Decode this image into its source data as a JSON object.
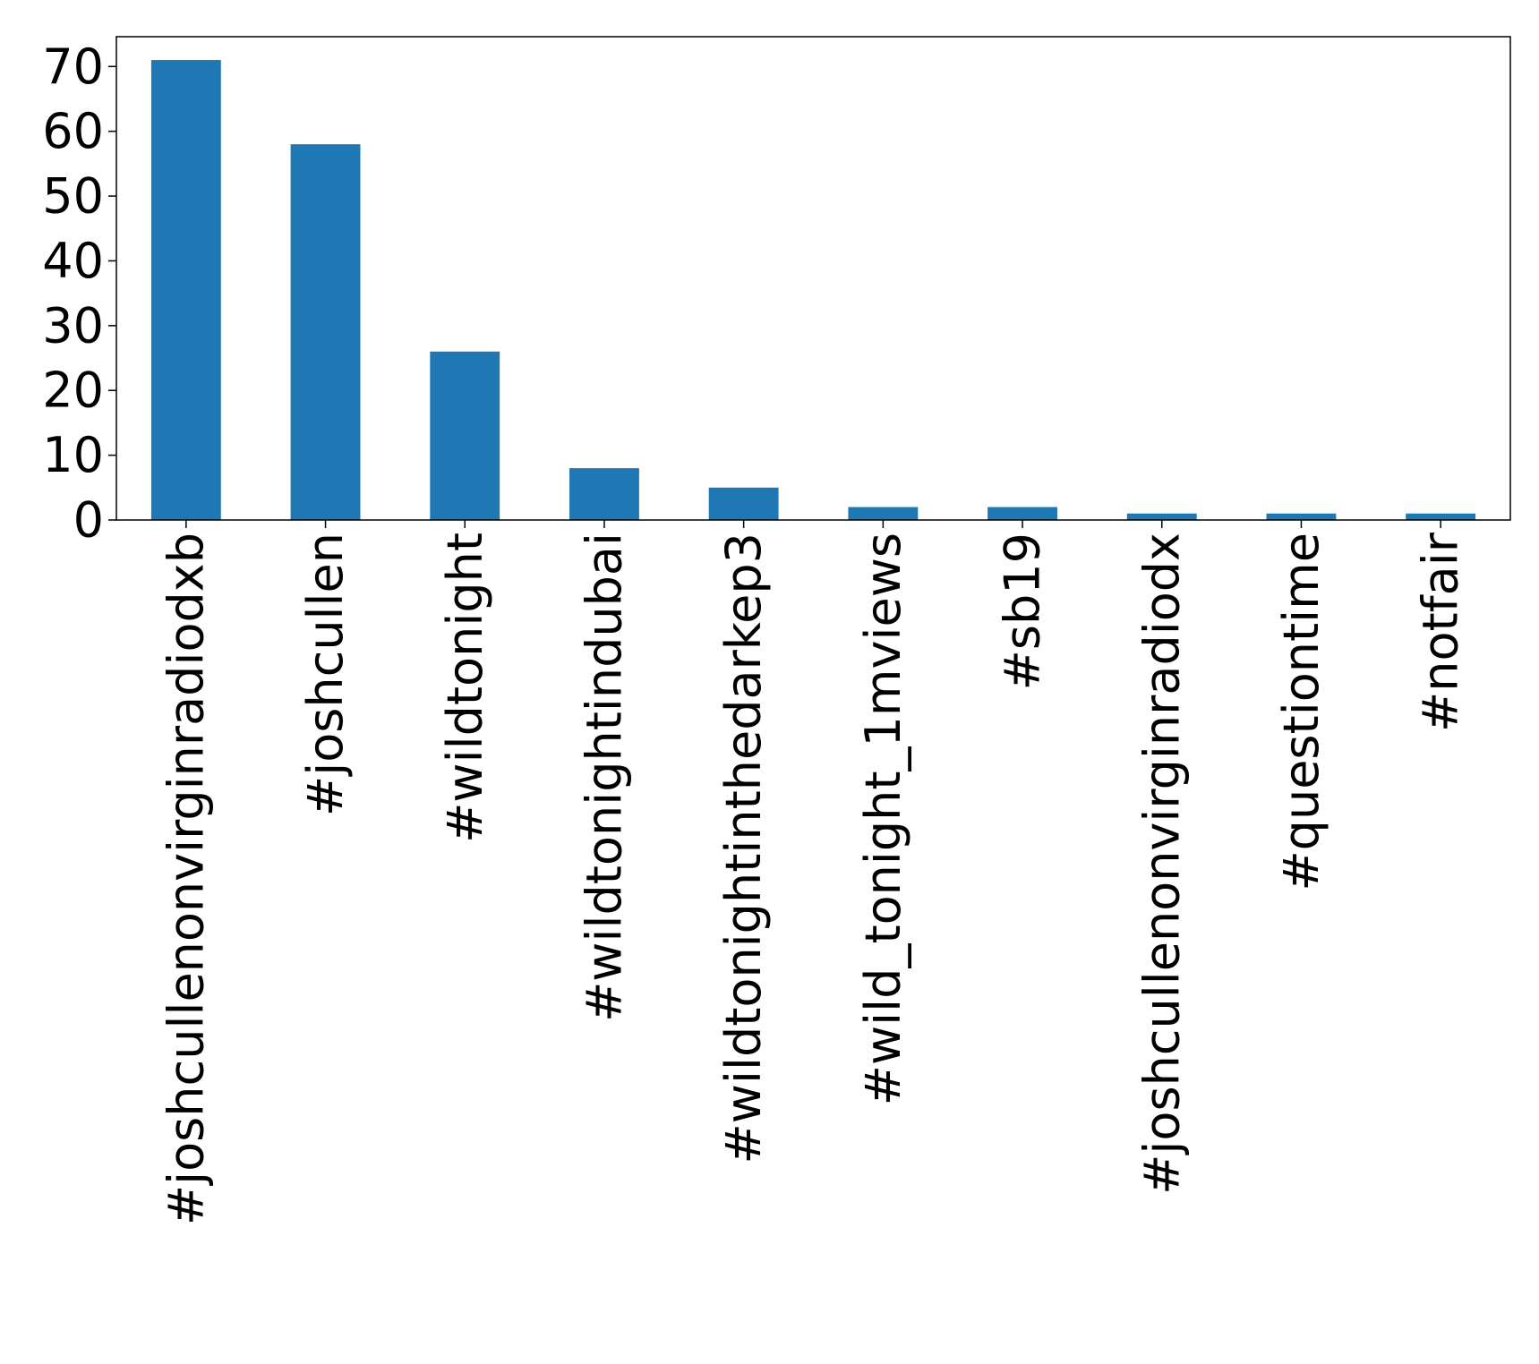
{
  "chart_data": {
    "type": "bar",
    "categories": [
      "#joshcullenonvirginradiodxb",
      "#joshcullen",
      "#wildtonight",
      "#wildtonightindubai",
      "#wildtonightinthedarkep3",
      "#wild_tonight_1mviews",
      "#sb19",
      "#joshcullenonvirginradiodx",
      "#questiontime",
      "#notfair"
    ],
    "values": [
      71,
      58,
      26,
      8,
      5,
      2,
      2,
      1,
      1,
      1
    ],
    "yticks": [
      "0",
      "10",
      "20",
      "30",
      "40",
      "50",
      "60",
      "70"
    ],
    "ylim": [
      0,
      74.6
    ],
    "bar_color": "#1f77b4",
    "grid": false,
    "legend": "none"
  }
}
